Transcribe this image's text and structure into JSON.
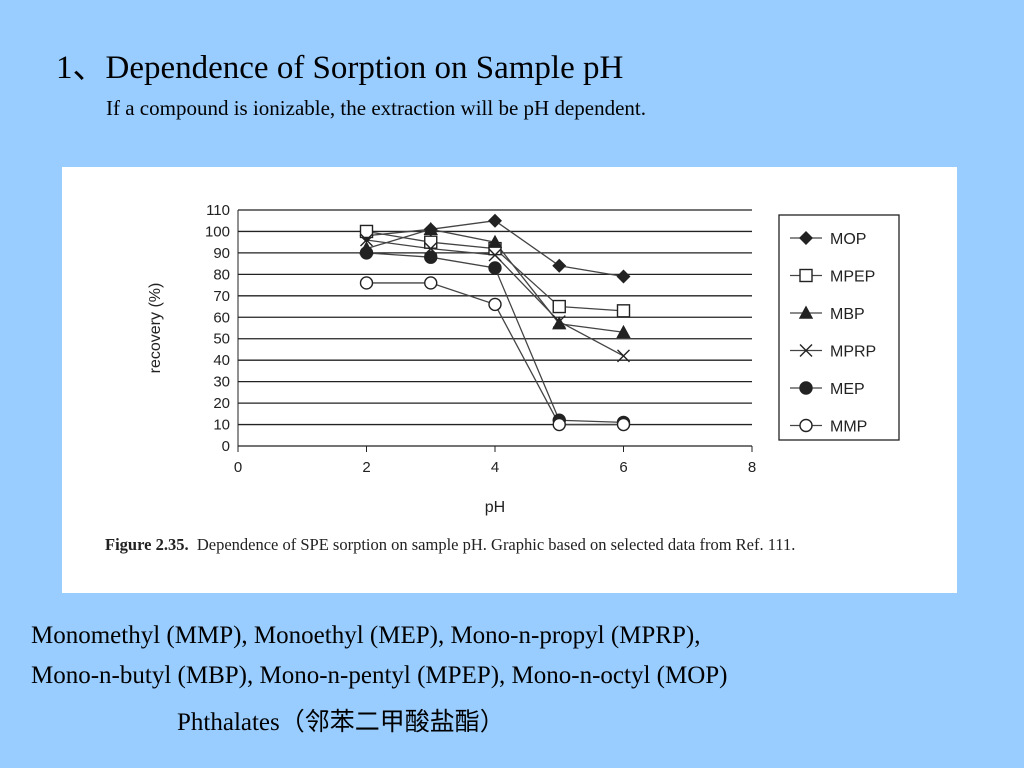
{
  "title": "1、Dependence of Sorption on Sample pH",
  "subtitle": "If a compound is ionizable, the extraction will be pH dependent.",
  "caption": {
    "label": "Figure 2.35.",
    "text": "Dependence of SPE sorption on sample pH. Graphic based on selected data from Ref. 111."
  },
  "footer": {
    "line1": "Monomethyl (MMP),   Monoethyl  (MEP), Mono-n-propyl (MPRP),",
    "line2": "Mono-n-butyl (MBP),  Mono-n-pentyl (MPEP), Mono-n-octyl (MOP)",
    "line3": "Phthalates（邻苯二甲酸盐酯）"
  },
  "chart_data": {
    "type": "line",
    "xlabel": "pH",
    "ylabel": "recovery (%)",
    "xlim": [
      0,
      8
    ],
    "ylim": [
      0,
      110
    ],
    "xticks": [
      "0",
      "2",
      "4",
      "6",
      "8"
    ],
    "yticks": [
      "0",
      "10",
      "20",
      "30",
      "40",
      "50",
      "60",
      "70",
      "80",
      "90",
      "100",
      "110"
    ],
    "x": [
      2,
      3,
      4,
      5,
      6
    ],
    "legend_position": "right",
    "series": [
      {
        "name": "MOP",
        "marker": "diamond-filled",
        "values": [
          98,
          101,
          105,
          84,
          79
        ]
      },
      {
        "name": "MPEP",
        "marker": "square-open",
        "values": [
          100,
          95,
          92,
          65,
          63
        ]
      },
      {
        "name": "MBP",
        "marker": "triangle-filled",
        "values": [
          92,
          101,
          95,
          57,
          53
        ]
      },
      {
        "name": "MPRP",
        "marker": "x",
        "values": [
          96,
          92,
          89,
          58,
          42
        ]
      },
      {
        "name": "MEP",
        "marker": "circle-filled",
        "values": [
          90,
          88,
          83,
          12,
          11
        ]
      },
      {
        "name": "MMP",
        "marker": "circle-open",
        "values": [
          76,
          76,
          66,
          10,
          10
        ]
      }
    ]
  }
}
